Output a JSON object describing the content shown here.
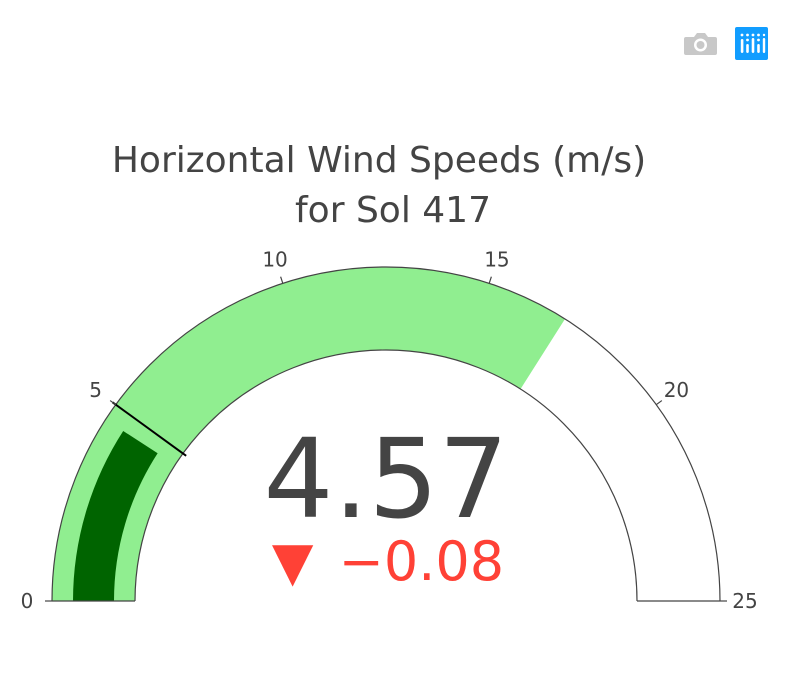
{
  "toolbar": {
    "camera_icon": "camera-icon",
    "logo_icon": "plotly-logo-icon",
    "colors": {
      "camera": "#c8c8c8",
      "logo_bg": "#119dff"
    }
  },
  "chart_data": {
    "type": "gauge",
    "title_lines": [
      "Horizontal Wind Speeds (m/s)",
      "for Sol 417"
    ],
    "value": 4.57,
    "value_label": "4.57",
    "delta": -0.08,
    "delta_label": "−0.08",
    "delta_symbol": "▼",
    "axis_range": [
      0,
      25
    ],
    "ticks": [
      {
        "value": 0,
        "label": "0"
      },
      {
        "value": 5,
        "label": "5"
      },
      {
        "value": 10,
        "label": "10"
      },
      {
        "value": 15,
        "label": "15"
      },
      {
        "value": 20,
        "label": "20"
      },
      {
        "value": 25,
        "label": "25"
      }
    ],
    "steps": [
      {
        "range": [
          0,
          17
        ],
        "color": "#90ee90"
      }
    ],
    "bar": {
      "value": 4.57,
      "color": "#006400"
    },
    "threshold": {
      "value": 5,
      "color": "#000000"
    },
    "colors": {
      "title": "#444444",
      "value": "#444444",
      "delta_decreasing": "#ff4136",
      "outline": "#444444"
    }
  }
}
